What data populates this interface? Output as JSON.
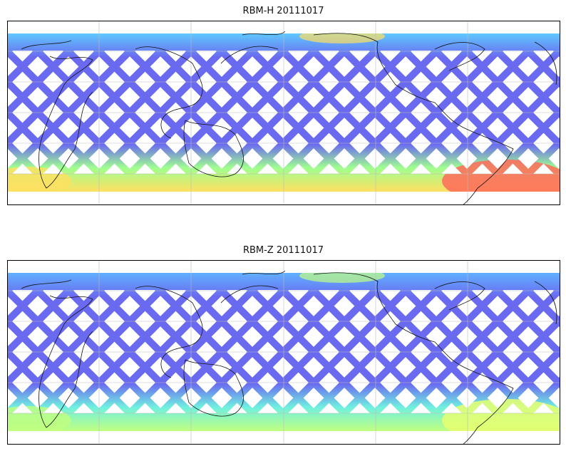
{
  "panels": [
    {
      "title": "RBM-H 20111017",
      "colors": {
        "base": "#6a6af0",
        "mid": "#60c8ff",
        "high": "#a0ff90",
        "hot": "#ffe060",
        "max": "#ff6a5a"
      }
    },
    {
      "title": "RBM-Z 20111017",
      "colors": {
        "base": "#6a6af0",
        "mid": "#60b0ff",
        "high": "#70f0e0",
        "hot": "#c0ff80",
        "max": "#e8ff70"
      }
    }
  ],
  "map": {
    "projection": "cylindrical",
    "gridlines": true,
    "coastlines": true
  }
}
